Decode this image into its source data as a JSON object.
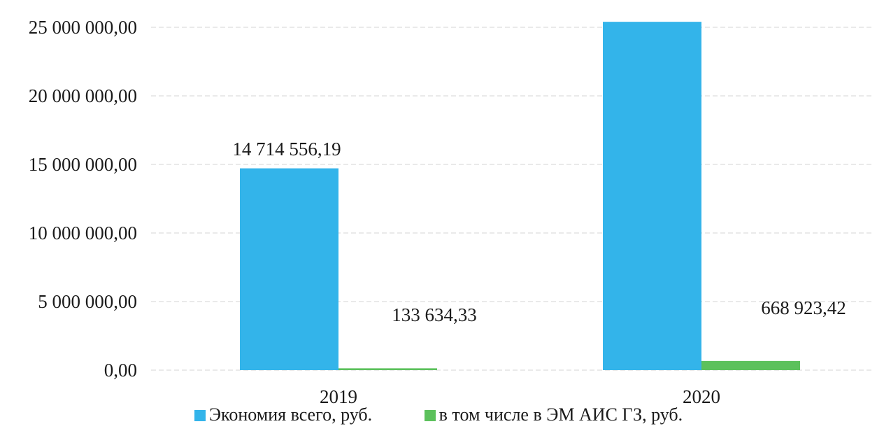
{
  "chart_data": {
    "type": "bar",
    "categories": [
      "2019",
      "2020"
    ],
    "series": [
      {
        "name": "Экономия всего, руб.",
        "values": [
          14714556.19,
          25400000
        ],
        "labels": [
          "14 714 556,19",
          ""
        ],
        "color": "#33b4ea"
      },
      {
        "name": "в том числе в ЭМ АИС ГЗ, руб.",
        "values": [
          133634.33,
          668923.42
        ],
        "labels": [
          "133 634,33",
          "668 923,42"
        ],
        "color": "#5cc15c"
      }
    ],
    "y_ticks": [
      {
        "value": 0,
        "label": "0,00"
      },
      {
        "value": 5000000,
        "label": "5 000 000,00"
      },
      {
        "value": 10000000,
        "label": "10 000 000,00"
      },
      {
        "value": 15000000,
        "label": "15 000 000,00"
      },
      {
        "value": 20000000,
        "label": "20 000 000,00"
      },
      {
        "value": 25000000,
        "label": "25 000 000,00"
      }
    ],
    "ylim": [
      0,
      25000000
    ],
    "grid": true,
    "legend_position": "bottom"
  }
}
